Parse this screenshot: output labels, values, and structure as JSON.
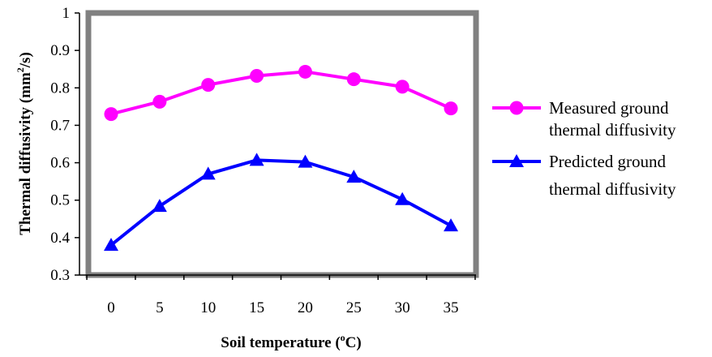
{
  "chart_data": {
    "type": "line",
    "x": [
      0,
      5,
      10,
      15,
      20,
      25,
      30,
      35
    ],
    "xtick_labels": [
      "0",
      "5",
      "10",
      "15",
      "20",
      "25",
      "30",
      "35"
    ],
    "series": [
      {
        "name_lines": [
          "Measured ground",
          "thermal diffusivity"
        ],
        "values": [
          0.73,
          0.763,
          0.808,
          0.832,
          0.843,
          0.823,
          0.803,
          0.745
        ],
        "color": "#ff00ff",
        "marker": "circle"
      },
      {
        "name_lines": [
          "Predicted ground",
          "thermal diffusivity"
        ],
        "values": [
          0.38,
          0.484,
          0.57,
          0.607,
          0.602,
          0.562,
          0.502,
          0.432
        ],
        "color": "#0000ff",
        "marker": "triangle"
      }
    ],
    "ylim": [
      0.3,
      1
    ],
    "yticks": [
      0.3,
      0.4,
      0.5,
      0.6,
      0.7,
      0.8,
      0.9,
      1
    ],
    "ytick_labels": [
      "0.3",
      "0.4",
      "0.5",
      "0.6",
      "0.7",
      "0.8",
      "0.9",
      "1"
    ],
    "xlabel_parts": [
      "Soil temperature (",
      "o",
      "C)"
    ],
    "ylabel_parts": [
      "Thermal diffusivity (mm",
      "2",
      "/s)"
    ],
    "legend_position": "right",
    "grid": false,
    "plot_border_color": "#808080"
  }
}
